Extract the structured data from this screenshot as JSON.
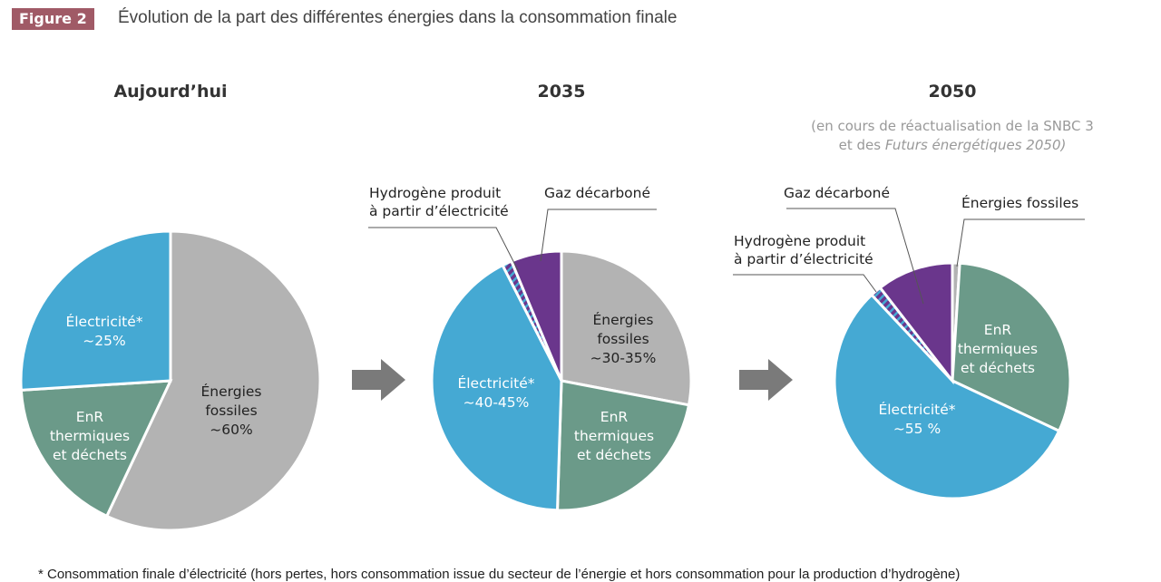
{
  "figure_label": "Figure 2",
  "title": "Évolution de la part des différentes énergies dans la consommation finale",
  "footnote": "* Consommation finale d’électricité (hors pertes, hors consommation issue du secteur de l’énergie et hors consommation pour la production d’hydrogène)",
  "colors": {
    "fossiles": "#b3b3b3",
    "electricite": "#45a9d3",
    "enr": "#6b9a89",
    "gaz": "#6a368c",
    "hydrogene_hatch": [
      "#6a368c",
      "#45a9d3"
    ],
    "badge": "#a05a66",
    "arrow": "#7a7a7a"
  },
  "chart_data": [
    {
      "type": "pie",
      "title": "Aujourd’hui",
      "slices": [
        {
          "name": "Énergies fossiles",
          "label": "Énergies\nfossiles\n~60%",
          "value": 57
        },
        {
          "name": "EnR thermiques et déchets",
          "label": "EnR\nthermiques\net déchets",
          "value": 17
        },
        {
          "name": "Électricité*",
          "label": "Électricité*\n~25%",
          "value": 26
        }
      ]
    },
    {
      "type": "pie",
      "title": "2035",
      "slices": [
        {
          "name": "Énergies fossiles",
          "label": "Énergies\nfossiles\n~30-35%",
          "value": 28
        },
        {
          "name": "EnR thermiques et déchets",
          "label": "EnR\nthermiques\net déchets",
          "value": 22.5
        },
        {
          "name": "Électricité*",
          "label": "Électricité*\n~40-45%",
          "value": 42
        },
        {
          "name": "Hydrogène produit à partir d’électricité",
          "label": "Hydrogène produit\nà partir d’électricité",
          "value": 1.2
        },
        {
          "name": "Gaz décarboné",
          "label": "Gaz décarboné",
          "value": 6.3
        }
      ]
    },
    {
      "type": "pie",
      "title": "2050",
      "note": "(en cours de réactualisation de la SNBC 3",
      "note2_prefix": "et des ",
      "note2_italic": "Futurs énergétiques 2050)",
      "slices": [
        {
          "name": "Énergies fossiles",
          "label": "Énergies fossiles",
          "value": 1
        },
        {
          "name": "EnR thermiques et déchets",
          "label": "EnR\nthermiques\net déchets",
          "value": 31
        },
        {
          "name": "Électricité*",
          "label": "Électricité*\n~55 %",
          "value": 56
        },
        {
          "name": "Hydrogène produit à partir d’électricité",
          "label": "Hydrogène produit\nà partir d’électricité",
          "value": 1.5
        },
        {
          "name": "Gaz décarboné",
          "label": "Gaz décarboné",
          "value": 10.5
        }
      ]
    }
  ]
}
